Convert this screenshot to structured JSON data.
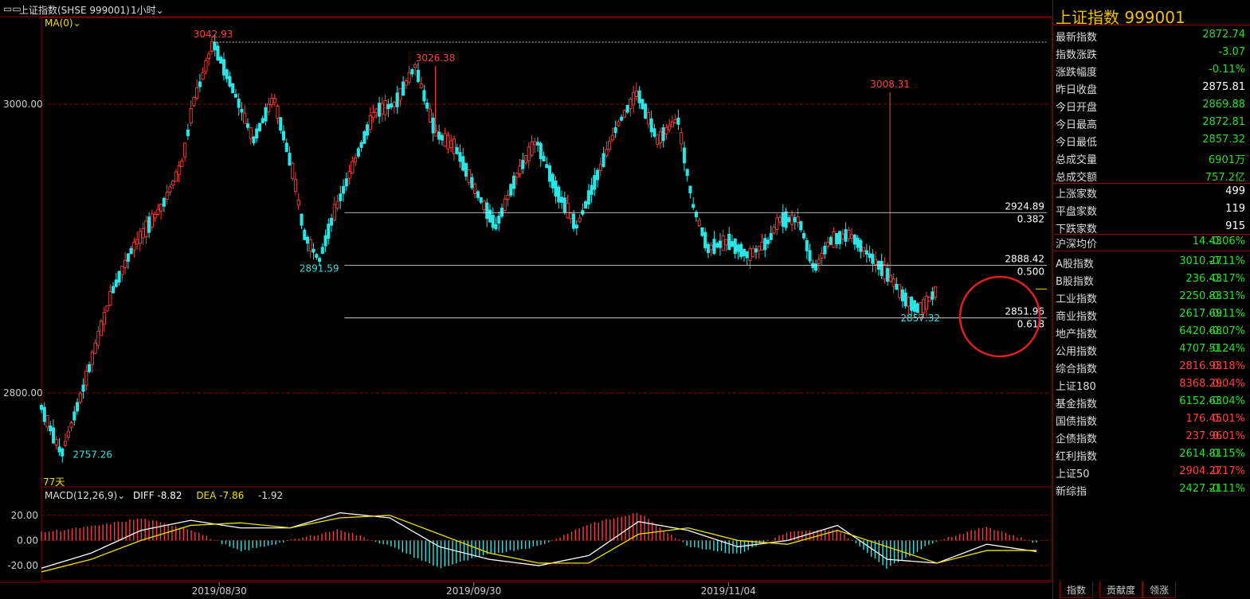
{
  "header": {
    "symbol_label": "上证指数(SHSE 999001)",
    "period": "1小时",
    "ma_label": "MA(0)"
  },
  "macd_header": {
    "label": "MACD(12,26,9)",
    "diff": "DIFF -8.82",
    "dea": "DEA -7.86",
    "macd": "-1.92"
  },
  "main_chart": {
    "bottom_left_label": "77天",
    "annotations": [
      {
        "text": "3042.93",
        "x": 0.17,
        "y": 3042.93,
        "color": "#ff4040",
        "pos": "above"
      },
      {
        "text": "3026.38",
        "x": 0.39,
        "y": 3026.38,
        "color": "#ff4040",
        "pos": "above"
      },
      {
        "text": "3008.31",
        "x": 0.84,
        "y": 3008.31,
        "color": "#ff4040",
        "pos": "above"
      },
      {
        "text": "2891.59",
        "x": 0.275,
        "y": 2891.59,
        "color": "#40e0e0",
        "pos": "below"
      },
      {
        "text": "2757.26",
        "x": 0.02,
        "y": 2757.26,
        "color": "#40e0e0",
        "pos": "right"
      },
      {
        "text": "2857.32",
        "x": 0.87,
        "y": 2857.32,
        "color": "#40e0e0",
        "pos": "below"
      }
    ],
    "fib_lines": [
      {
        "price": 2924.89,
        "ratio": "0.382"
      },
      {
        "price": 2888.42,
        "ratio": "0.500"
      },
      {
        "price": 2851.96,
        "ratio": "0.618"
      }
    ]
  },
  "chart_data": {
    "type": "candlestick",
    "title": "",
    "x_ticks": [
      "2019/08/30",
      "2019/09/30",
      "2019/11/04"
    ],
    "y_ticks": [
      3000,
      2800
    ],
    "y_tick_labels": [
      "3000.00",
      "2800.00"
    ],
    "macd_y_ticks": [
      20,
      0,
      -20
    ],
    "macd_y_tick_labels": [
      "20.00",
      "0.00",
      "-20.00"
    ],
    "high_price": 3042.93,
    "low_price": 2757.26,
    "price_path": [
      [
        0.0,
        2790
      ],
      [
        0.02,
        2757.26
      ],
      [
        0.04,
        2800
      ],
      [
        0.07,
        2870
      ],
      [
        0.09,
        2900
      ],
      [
        0.12,
        2930
      ],
      [
        0.14,
        2960
      ],
      [
        0.15,
        3000
      ],
      [
        0.16,
        3020
      ],
      [
        0.17,
        3042.93
      ],
      [
        0.19,
        3010
      ],
      [
        0.21,
        2975
      ],
      [
        0.23,
        3005
      ],
      [
        0.25,
        2950
      ],
      [
        0.26,
        2910
      ],
      [
        0.275,
        2891.59
      ],
      [
        0.29,
        2925
      ],
      [
        0.31,
        2960
      ],
      [
        0.33,
        2995
      ],
      [
        0.35,
        3000
      ],
      [
        0.37,
        3026.38
      ],
      [
        0.39,
        2980
      ],
      [
        0.41,
        2970
      ],
      [
        0.43,
        2940
      ],
      [
        0.45,
        2915
      ],
      [
        0.47,
        2950
      ],
      [
        0.49,
        2975
      ],
      [
        0.51,
        2940
      ],
      [
        0.53,
        2915
      ],
      [
        0.55,
        2950
      ],
      [
        0.57,
        2985
      ],
      [
        0.59,
        3008.31
      ],
      [
        0.61,
        2975
      ],
      [
        0.63,
        2990
      ],
      [
        0.645,
        2930
      ],
      [
        0.66,
        2900
      ],
      [
        0.68,
        2905
      ],
      [
        0.7,
        2895
      ],
      [
        0.72,
        2905
      ],
      [
        0.73,
        2920
      ],
      [
        0.75,
        2920
      ],
      [
        0.765,
        2885
      ],
      [
        0.78,
        2905
      ],
      [
        0.8,
        2910
      ],
      [
        0.82,
        2895
      ],
      [
        0.84,
        2880
      ],
      [
        0.855,
        2865
      ],
      [
        0.87,
        2857.32
      ],
      [
        0.885,
        2870
      ]
    ],
    "macd": {
      "diff": [
        [
          0.0,
          -22
        ],
        [
          0.05,
          -10
        ],
        [
          0.1,
          8
        ],
        [
          0.15,
          16
        ],
        [
          0.2,
          10
        ],
        [
          0.25,
          10
        ],
        [
          0.3,
          22
        ],
        [
          0.35,
          18
        ],
        [
          0.4,
          -5
        ],
        [
          0.45,
          -15
        ],
        [
          0.5,
          -20
        ],
        [
          0.55,
          -12
        ],
        [
          0.6,
          15
        ],
        [
          0.65,
          8
        ],
        [
          0.7,
          -5
        ],
        [
          0.75,
          0
        ],
        [
          0.8,
          12
        ],
        [
          0.85,
          -15
        ],
        [
          0.9,
          -18
        ],
        [
          0.95,
          -3
        ],
        [
          1.0,
          -8.82
        ]
      ],
      "dea": [
        [
          0.0,
          -25
        ],
        [
          0.05,
          -15
        ],
        [
          0.1,
          0
        ],
        [
          0.15,
          12
        ],
        [
          0.2,
          14
        ],
        [
          0.25,
          10
        ],
        [
          0.3,
          18
        ],
        [
          0.35,
          20
        ],
        [
          0.4,
          5
        ],
        [
          0.45,
          -10
        ],
        [
          0.5,
          -18
        ],
        [
          0.55,
          -18
        ],
        [
          0.6,
          5
        ],
        [
          0.65,
          10
        ],
        [
          0.7,
          0
        ],
        [
          0.75,
          -3
        ],
        [
          0.8,
          8
        ],
        [
          0.85,
          -5
        ],
        [
          0.9,
          -18
        ],
        [
          0.95,
          -8
        ],
        [
          1.0,
          -7.86
        ]
      ]
    }
  },
  "colors": {
    "up": "#ff3b3b",
    "down": "#29e6e6",
    "grid": "#8b0000",
    "diff": "#ffffff",
    "dea": "#f0e000",
    "title": "#f0c000",
    "value_green": "#2bdd2b",
    "value_red": "#ff4040"
  },
  "panel": {
    "title": "上证指数  999001",
    "quote": [
      {
        "name": "最新指数",
        "value": "2872.74",
        "color": "#2bdd2b"
      },
      {
        "name": "指数涨跌",
        "value": "-3.07",
        "color": "#2bdd2b"
      },
      {
        "name": "涨跌幅度",
        "value": "-0.11%",
        "color": "#2bdd2b"
      },
      {
        "name": "昨日收盘",
        "value": "2875.81",
        "color": "#ffffff"
      },
      {
        "name": "今日开盘",
        "value": "2869.88",
        "color": "#2bdd2b"
      },
      {
        "name": "今日最高",
        "value": "2872.81",
        "color": "#2bdd2b"
      },
      {
        "name": "今日最低",
        "value": "2857.32",
        "color": "#2bdd2b"
      },
      {
        "name": "总成交量",
        "value": "6901万",
        "color": "#2bdd2b"
      },
      {
        "name": "总成交额",
        "value": "757.2亿",
        "color": "#2bdd2b"
      }
    ],
    "breadth": [
      {
        "name": "上涨家数",
        "value": "499"
      },
      {
        "name": "平盘家数",
        "value": "119"
      },
      {
        "name": "下跌家数",
        "value": "915"
      }
    ],
    "avg": {
      "name": "沪深均价",
      "value": "14.43",
      "change": "-0.06%"
    },
    "indices": [
      {
        "name": "A股指数",
        "value": "3010.27",
        "change": "-0.11%",
        "color": "#2bdd2b"
      },
      {
        "name": "B股指数",
        "value": "236.43",
        "change": "-0.17%",
        "color": "#2bdd2b"
      },
      {
        "name": "工业指数",
        "value": "2250.83",
        "change": "-0.31%",
        "color": "#2bdd2b"
      },
      {
        "name": "商业指数",
        "value": "2617.69",
        "change": "-0.11%",
        "color": "#2bdd2b"
      },
      {
        "name": "地产指数",
        "value": "6420.68",
        "change": "-0.07%",
        "color": "#2bdd2b"
      },
      {
        "name": "公用指数",
        "value": "4707.51",
        "change": "-0.24%",
        "color": "#2bdd2b"
      },
      {
        "name": "综合指数",
        "value": "2816.93",
        "change": "0.18%",
        "color": "#ff4040"
      },
      {
        "name": "上证180",
        "value": "8368.29",
        "change": "0.04%",
        "color": "#ff4040"
      },
      {
        "name": "基金指数",
        "value": "6152.63",
        "change": "-0.04%",
        "color": "#2bdd2b"
      },
      {
        "name": "国债指数",
        "value": "176.45",
        "change": "0.01%",
        "color": "#ff4040"
      },
      {
        "name": "企债指数",
        "value": "237.96",
        "change": "0.01%",
        "color": "#ff4040"
      },
      {
        "name": "红利指数",
        "value": "2614.81",
        "change": "-0.15%",
        "color": "#2bdd2b"
      },
      {
        "name": "上证50",
        "value": "2904.27",
        "change": "0.17%",
        "color": "#ff4040"
      },
      {
        "name": "新综指",
        "value": "2427.21",
        "change": "-0.11%",
        "color": "#2bdd2b"
      }
    ],
    "tabs": [
      "指数",
      "贡献度",
      "领涨"
    ]
  }
}
